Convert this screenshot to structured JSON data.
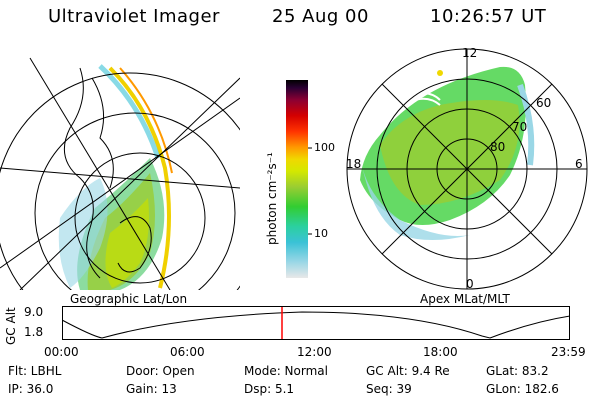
{
  "header": {
    "instrument": "Ultraviolet Imager",
    "date": "25 Aug 00",
    "time": "10:26:57 UT"
  },
  "left_panel": {
    "caption": "Geographic Lat/Lon"
  },
  "right_panel": {
    "caption": "Apex MLat/MLT",
    "mlt_labels": {
      "top": "12",
      "left": "18",
      "right": "6",
      "bottom": "0"
    },
    "lat_labels": [
      "60",
      "70",
      "80"
    ]
  },
  "colorbar": {
    "unit_label": "photon cm⁻²s⁻¹",
    "ticks": [
      "100",
      "10"
    ],
    "scale": "log",
    "colors": [
      "#e8e8e8",
      "#9ad7e6",
      "#3ac2d6",
      "#2bd0a0",
      "#32cd32",
      "#9acd32",
      "#d4e800",
      "#f0d800",
      "#ff9900",
      "#ff3300",
      "#d40000",
      "#8b0033",
      "#2a0033",
      "#000000"
    ]
  },
  "altitude_plot": {
    "ylabel": "GC Alt",
    "y_ticks": [
      "9.0",
      "1.8"
    ],
    "x_ticks": [
      "00:00",
      "06:00",
      "12:00",
      "18:00",
      "23:59"
    ],
    "marker_color": "#ff0000"
  },
  "status": {
    "row1": [
      "Flt: LBHL",
      "Door: Open",
      "Mode: Normal",
      "GC Alt: 9.4 Re",
      "GLat:  83.2"
    ],
    "row2": [
      "IP: 36.0",
      "Gain: 13",
      "Dsp:     5.1",
      "Seq: 39",
      "GLon: 182.6"
    ]
  }
}
